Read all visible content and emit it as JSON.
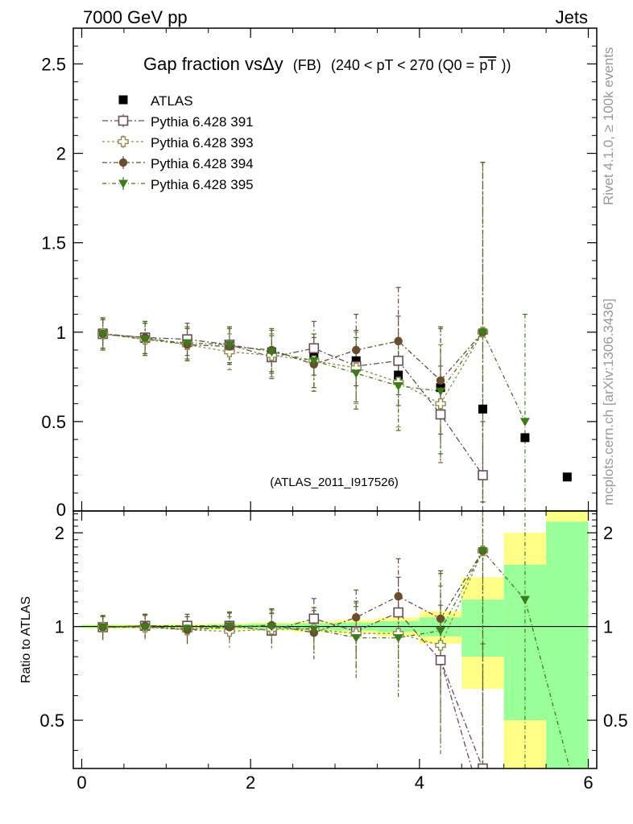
{
  "header": {
    "left": "7000 GeV pp",
    "right": "Jets"
  },
  "side": {
    "rivet": "Rivet 4.1.0, ≥ 100k events",
    "mcplots": "mcplots.cern.ch [arXiv:1306.3436]"
  },
  "chart_data": {
    "type": "scatter",
    "title": "Gap fraction vsΔy",
    "title_fb": "(FB)",
    "title_cut": "(240 < pT < 270 (Q0 =",
    "title_cut_sym": "pT",
    "title_close": "))",
    "analysis_label": "(ATLAS_2011_I917526)",
    "xlabel": "",
    "ylabel": "",
    "ratio_ylabel": "Ratio to ATLAS",
    "xlim": [
      -0.1,
      6.1
    ],
    "ylim": [
      0,
      2.7
    ],
    "ratio_ylim": [
      0.35,
      2.35
    ],
    "xticks": [
      0,
      2,
      4,
      6
    ],
    "xtick_labels": [
      "0",
      "2",
      "4",
      "6"
    ],
    "yticks": [
      0.5,
      1,
      1.5,
      2,
      2.5
    ],
    "ytick_labels": [
      "0.5",
      "1",
      "1.5",
      "2",
      "2.5"
    ],
    "bottom_tick_label": "0",
    "ratio_yticks_left": [
      0.5,
      1,
      2
    ],
    "ratio_ytick_labels_left": [
      "0.5",
      "1",
      "2"
    ],
    "ratio_ytick_labels_right": [
      "0.5",
      "1",
      "2"
    ],
    "x": [
      0.25,
      0.75,
      1.25,
      1.75,
      2.25,
      2.75,
      3.25,
      3.75,
      4.25,
      4.75,
      5.25,
      5.75
    ],
    "data": {
      "name": "ATLAS",
      "values": [
        0.995,
        0.965,
        0.955,
        0.925,
        0.89,
        0.86,
        0.84,
        0.76,
        0.69,
        0.57,
        0.41,
        0.19
      ]
    },
    "band_edges": [
      0.0,
      0.5,
      1.0,
      1.5,
      2.0,
      2.5,
      3.0,
      3.5,
      4.0,
      4.5,
      5.0,
      5.5,
      6.0
    ],
    "band_stat": [
      [
        0.99,
        1.01
      ],
      [
        0.99,
        1.01
      ],
      [
        0.99,
        1.01
      ],
      [
        0.985,
        1.015
      ],
      [
        0.98,
        1.02
      ],
      [
        0.975,
        1.025
      ],
      [
        0.97,
        1.03
      ],
      [
        0.96,
        1.04
      ],
      [
        0.93,
        1.07
      ],
      [
        0.8,
        1.22
      ],
      [
        0.5,
        1.58
      ],
      [
        0.35,
        2.17
      ]
    ],
    "band_total": [
      [
        0.985,
        1.015
      ],
      [
        0.985,
        1.015
      ],
      [
        0.98,
        1.02
      ],
      [
        0.975,
        1.025
      ],
      [
        0.97,
        1.03
      ],
      [
        0.96,
        1.04
      ],
      [
        0.95,
        1.05
      ],
      [
        0.93,
        1.07
      ],
      [
        0.88,
        1.12
      ],
      [
        0.63,
        1.44
      ],
      [
        0.35,
        2.0
      ],
      [
        0.35,
        2.35
      ]
    ],
    "series": [
      {
        "name": "Pythia 6.428 391",
        "marker": "open-square",
        "color": "#6b4c5a",
        "dash": "7 3 2 3",
        "values": [
          0.99,
          0.97,
          0.96,
          0.93,
          0.86,
          0.91,
          0.81,
          0.84,
          0.54,
          0.2,
          null,
          null
        ],
        "errors": [
          0.08,
          0.09,
          0.09,
          0.1,
          0.12,
          0.15,
          0.2,
          0.25,
          0.27,
          0.3,
          null,
          null
        ],
        "ratio": [
          0.995,
          1.005,
          1.005,
          1.005,
          0.97,
          1.06,
          0.965,
          1.11,
          0.78,
          0.35,
          null,
          null
        ],
        "ratio_errors": [
          0.08,
          0.09,
          0.09,
          0.1,
          0.13,
          0.17,
          0.24,
          0.33,
          0.39,
          0.53,
          null,
          null
        ],
        "ratio_tail": [
          [
            4.25,
            0.78
          ],
          [
            4.62,
            0.35
          ]
        ]
      },
      {
        "name": "Pythia 6.428 393",
        "marker": "open-cross",
        "color": "#8c8c4a",
        "dash": "3 3",
        "values": [
          0.99,
          0.96,
          0.93,
          0.89,
          0.87,
          0.84,
          0.8,
          0.72,
          0.6,
          1.0,
          null,
          null
        ],
        "errors": [
          0.09,
          0.09,
          0.09,
          0.1,
          0.12,
          0.15,
          0.2,
          0.25,
          0.33,
          0.95,
          null,
          null
        ],
        "ratio": [
          0.995,
          0.995,
          0.975,
          0.965,
          0.98,
          0.98,
          0.95,
          0.95,
          0.87,
          1.75,
          null,
          null
        ],
        "ratio_errors": [
          0.09,
          0.09,
          0.1,
          0.11,
          0.13,
          0.17,
          0.24,
          0.33,
          0.48,
          1.65,
          null,
          null
        ],
        "ratio_tail": null
      },
      {
        "name": "Pythia 6.428 394",
        "marker": "filled-circle",
        "color": "#6b4c2e",
        "dash": "6 3 2 3",
        "values": [
          0.99,
          0.97,
          0.93,
          0.92,
          0.9,
          0.82,
          0.9,
          0.95,
          0.73,
          1.0,
          null,
          null
        ],
        "errors": [
          0.09,
          0.09,
          0.09,
          0.1,
          0.12,
          0.15,
          0.2,
          0.3,
          0.3,
          0.95,
          null,
          null
        ],
        "ratio": [
          0.995,
          1.005,
          0.975,
          0.995,
          1.01,
          0.955,
          1.07,
          1.25,
          1.06,
          1.75,
          null,
          null
        ],
        "ratio_errors": [
          0.09,
          0.09,
          0.1,
          0.11,
          0.13,
          0.17,
          0.24,
          0.4,
          0.45,
          1.65,
          null,
          null
        ],
        "ratio_tail": null
      },
      {
        "name": "Pythia 6.428 395",
        "marker": "filled-triangle-down",
        "color": "#3d7a1a",
        "dash": "5 3 1 3",
        "values": [
          0.99,
          0.96,
          0.94,
          0.93,
          0.89,
          0.84,
          0.77,
          0.7,
          0.67,
          1.0,
          0.5,
          null
        ],
        "errors": [
          0.08,
          0.09,
          0.09,
          0.1,
          0.12,
          0.15,
          0.2,
          0.25,
          0.35,
          0.95,
          0.6,
          null
        ],
        "ratio": [
          0.995,
          0.995,
          0.985,
          1.005,
          1.0,
          0.98,
          0.92,
          0.92,
          0.97,
          1.75,
          1.22,
          null
        ],
        "ratio_errors": [
          0.08,
          0.09,
          0.09,
          0.11,
          0.13,
          0.17,
          0.24,
          0.33,
          0.51,
          1.65,
          1.45,
          null
        ],
        "ratio_tail": [
          [
            5.25,
            1.22
          ],
          [
            5.78,
            0.35
          ]
        ]
      }
    ]
  }
}
